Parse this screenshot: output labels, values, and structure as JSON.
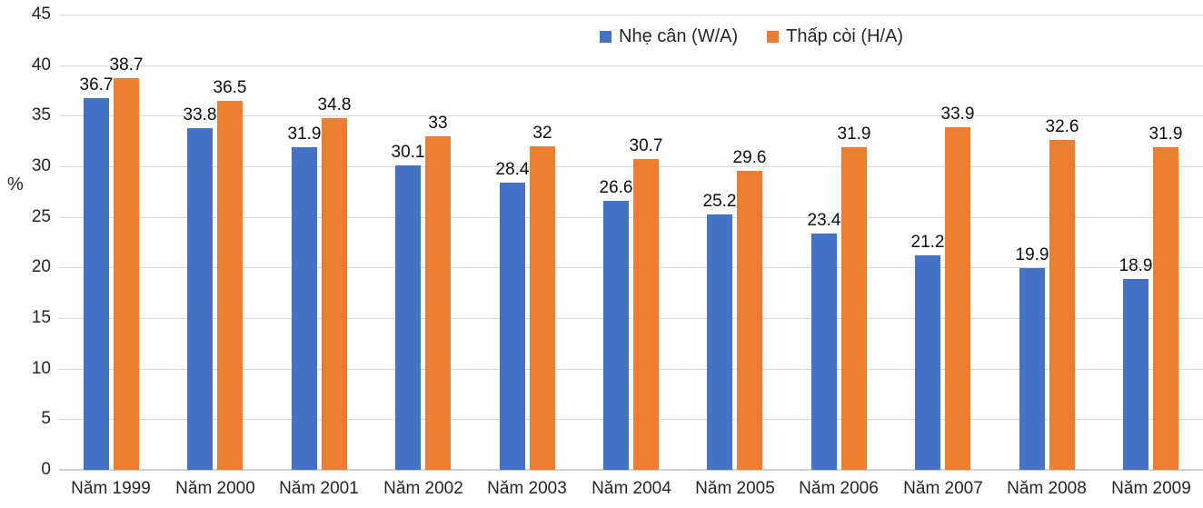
{
  "chart_data": {
    "type": "bar",
    "title": "",
    "categories": [
      "Năm 1999",
      "Năm 2000",
      "Năm 2001",
      "Năm 2002",
      "Năm 2003",
      "Năm 2004",
      "Năm 2005",
      "Năm 2006",
      "Năm 2007",
      "Năm 2008",
      "Năm 2009"
    ],
    "series": [
      {
        "name": "Nhẹ cân (W/A)",
        "color": "#4472C4",
        "values": [
          36.7,
          33.8,
          31.9,
          30.1,
          28.4,
          26.6,
          25.2,
          23.4,
          21.2,
          19.9,
          18.9
        ]
      },
      {
        "name": "Thấp còi (H/A)",
        "color": "#ED7D31",
        "values": [
          38.7,
          36.5,
          34.8,
          33,
          32,
          30.7,
          29.6,
          31.9,
          33.9,
          32.6,
          31.9
        ]
      }
    ],
    "xlabel": "",
    "ylabel": "%",
    "ylim": [
      0,
      45
    ],
    "yticks": [
      0,
      5,
      10,
      15,
      20,
      25,
      30,
      35,
      40,
      45
    ],
    "grid": true,
    "legend_position": "top",
    "data_labels": true
  },
  "colors": {
    "series1": "#4472C4",
    "series2": "#ED7D31",
    "gridline": "#D9D9D9",
    "axisline": "#D0D0D0",
    "tick_text": "#262626",
    "data_label_text": "#0D0D0D",
    "background": "#FFFFFF"
  }
}
